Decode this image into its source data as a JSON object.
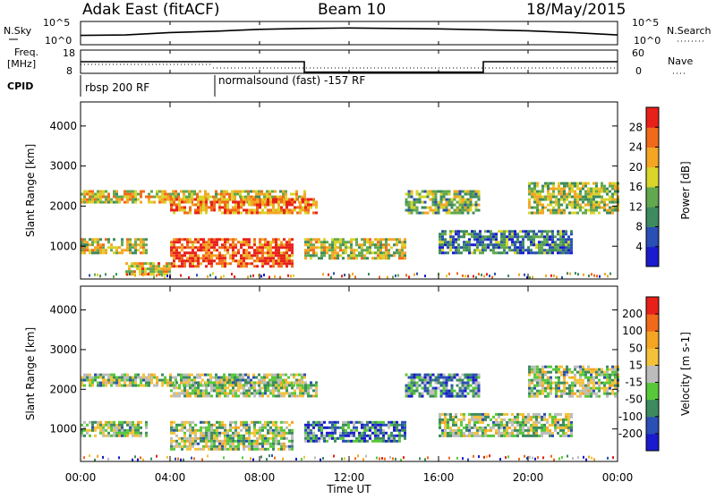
{
  "header": {
    "station": "Adak East (fitACF)",
    "beam": "Beam 10",
    "date": "18/May/2015"
  },
  "noise_panel": {
    "left_label": "N.Sky",
    "right_label": "N.Search",
    "left_ticks": [
      "10^5",
      "10^0"
    ],
    "right_ticks": [
      "10^5",
      "10^0"
    ],
    "series": [
      {
        "name": "N.Sky",
        "x": [
          0,
          2,
          4,
          6,
          8,
          10,
          12,
          14,
          16,
          18,
          20,
          22,
          24
        ],
        "y": [
          2.0,
          2.1,
          2.6,
          2.9,
          3.3,
          3.5,
          3.6,
          3.5,
          3.4,
          3.2,
          3.0,
          2.6,
          2.1
        ]
      }
    ]
  },
  "freq_panel": {
    "left_label_1": "Freq.",
    "left_label_2": "[MHz]",
    "right_label": "Nave",
    "left_ticks": [
      "18",
      "8"
    ],
    "right_ticks": [
      "60",
      "0"
    ],
    "freq_steps": [
      [
        0,
        13.0
      ],
      [
        10,
        13.0
      ],
      [
        10,
        8.5
      ],
      [
        18,
        8.5
      ],
      [
        18,
        13.0
      ],
      [
        24,
        13.0
      ]
    ]
  },
  "cpid": {
    "label": "CPID",
    "segments": [
      {
        "start": 0,
        "text": "rbsp 200 RF"
      },
      {
        "start": 6,
        "text": "normalsound (fast) -157 RF"
      }
    ]
  },
  "chart_data": [
    {
      "type": "heatmap",
      "title": "",
      "ylabel": "Slant Range [km]",
      "xlabel": "",
      "xlim": [
        0,
        24
      ],
      "ylim": [
        180,
        4600
      ],
      "yticks": [
        "1000",
        "2000",
        "3000",
        "4000"
      ],
      "colorbar": {
        "label": "Power [dB]",
        "ticks": [
          "4",
          "8",
          "12",
          "16",
          "20",
          "24",
          "28"
        ],
        "colors": [
          "#1a1acf",
          "#2a4fb5",
          "#3d8a5f",
          "#62a84e",
          "#d8d42a",
          "#f4a623",
          "#f06a1a",
          "#e8201a"
        ]
      },
      "bands": [
        {
          "x0": 0,
          "x1": 10,
          "y0": 2100,
          "y1": 2400,
          "level": 0.6
        },
        {
          "x0": 4,
          "x1": 10.5,
          "y0": 1800,
          "y1": 2200,
          "level": 0.75
        },
        {
          "x0": 0,
          "x1": 3,
          "y0": 800,
          "y1": 1200,
          "level": 0.55
        },
        {
          "x0": 4,
          "x1": 9.5,
          "y0": 500,
          "y1": 1200,
          "level": 0.85
        },
        {
          "x0": 2,
          "x1": 4,
          "y0": 300,
          "y1": 600,
          "level": 0.65
        },
        {
          "x0": 10,
          "x1": 14.5,
          "y0": 700,
          "y1": 1200,
          "level": 0.55
        },
        {
          "x0": 14.5,
          "x1": 17.8,
          "y0": 1800,
          "y1": 2400,
          "level": 0.45
        },
        {
          "x0": 16,
          "x1": 22,
          "y0": 800,
          "y1": 1400,
          "level": 0.3
        },
        {
          "x0": 20,
          "x1": 24,
          "y0": 1800,
          "y1": 2600,
          "level": 0.5
        }
      ]
    },
    {
      "type": "heatmap",
      "title": "",
      "ylabel": "Slant Range [km]",
      "xlabel": "Time UT",
      "xlim": [
        0,
        24
      ],
      "ylim": [
        180,
        4600
      ],
      "yticks": [
        "1000",
        "2000",
        "3000",
        "4000"
      ],
      "xticks": [
        "00:00",
        "04:00",
        "08:00",
        "12:00",
        "16:00",
        "20:00",
        "00:00"
      ],
      "colorbar": {
        "label": "Velocity [m s-1]",
        "ticks": [
          "200",
          "100",
          "50",
          "15",
          "-15",
          "-50",
          "-100",
          "-200"
        ],
        "colors": [
          "#1a1acf",
          "#2a4fb5",
          "#3d8a5f",
          "#58c83a",
          "#bcbcbc",
          "#f4c23a",
          "#f4a623",
          "#f06a1a",
          "#e8201a"
        ]
      },
      "bands": [
        {
          "x0": 0,
          "x1": 10,
          "y0": 2100,
          "y1": 2400,
          "level": 0.45
        },
        {
          "x0": 4,
          "x1": 10.5,
          "y0": 1800,
          "y1": 2200,
          "level": 0.45
        },
        {
          "x0": 0,
          "x1": 3,
          "y0": 800,
          "y1": 1200,
          "level": 0.45
        },
        {
          "x0": 4,
          "x1": 9.5,
          "y0": 500,
          "y1": 1200,
          "level": 0.45
        },
        {
          "x0": 10,
          "x1": 14.5,
          "y0": 700,
          "y1": 1200,
          "level": 0.25
        },
        {
          "x0": 14.5,
          "x1": 17.8,
          "y0": 1800,
          "y1": 2400,
          "level": 0.3
        },
        {
          "x0": 16,
          "x1": 22,
          "y0": 800,
          "y1": 1400,
          "level": 0.45
        },
        {
          "x0": 20,
          "x1": 24,
          "y0": 1800,
          "y1": 2600,
          "level": 0.45
        }
      ]
    }
  ]
}
